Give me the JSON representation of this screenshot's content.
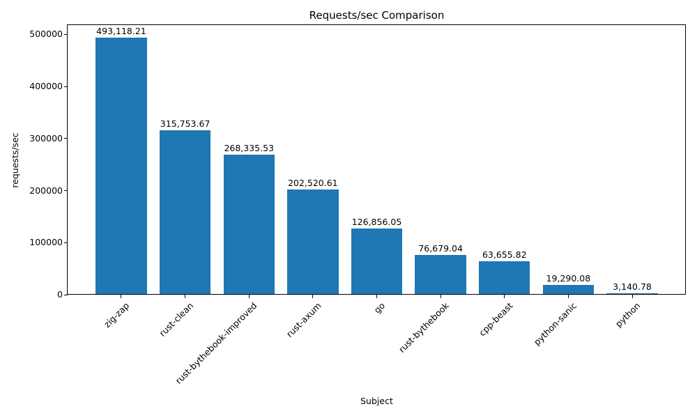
{
  "chart_data": {
    "type": "bar",
    "title": "Requests/sec Comparison",
    "xlabel": "Subject",
    "ylabel": "requests/sec",
    "categories": [
      "zig-zap",
      "rust-clean",
      "rust-bythebook-improved",
      "rust-axum",
      "go",
      "rust-bythebook",
      "cpp-beast",
      "python-sanic",
      "python"
    ],
    "values": [
      493118.21,
      315753.67,
      268335.53,
      202520.61,
      126856.05,
      76679.04,
      63655.82,
      19290.08,
      3140.78
    ],
    "value_labels": [
      "493,118.21",
      "315,753.67",
      "268,335.53",
      "202,520.61",
      "126,856.05",
      "76,679.04",
      "63,655.82",
      "19,290.08",
      "3,140.78"
    ],
    "bar_color": "#1f77b4",
    "ylim": [
      0,
      517774
    ],
    "yticks": [
      0,
      100000,
      200000,
      300000,
      400000,
      500000
    ],
    "ytick_labels": [
      "0",
      "100000",
      "200000",
      "300000",
      "400000",
      "500000"
    ],
    "xtick_rotation": 45,
    "grid": false,
    "legend": "none"
  }
}
